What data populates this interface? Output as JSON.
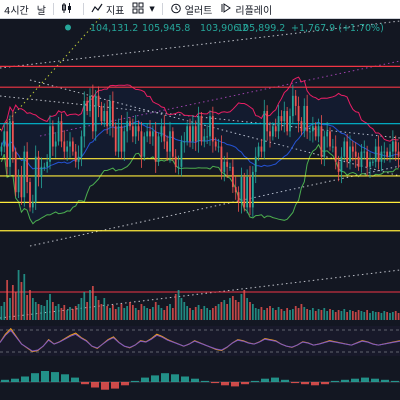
{
  "toolbar": {
    "interval_label": "4시간",
    "chart_type_label": "날",
    "indicators_label": "지표",
    "templates_label": "",
    "alert_label": "얼러트",
    "replay_label": "리플레이"
  },
  "colors": {
    "background": "#131722",
    "up": "#26a69a",
    "down": "#ef5350",
    "bb_upper": "#e91e63",
    "bb_lower": "#4caf50",
    "bb_basis": "#2962ff",
    "hline_red": "#f23645",
    "hline_yellow": "#ffeb3b",
    "hline_cyan": "#00bcd4",
    "trend_white": "#d1d4dc",
    "trend_yellow": "#cddc39",
    "trend_purple": "#ab47bc",
    "ohlc_text": "#26a69a"
  },
  "chart_data": [
    {
      "type": "candlestick",
      "title": "",
      "ohlc_header": {
        "open": "104,131.2",
        "high": "105,945.8",
        "low": "103,906.2",
        "close": "105,899.2",
        "change": "+1,767.9 (+1.70%)"
      },
      "ylim": [
        80,
        121
      ],
      "closes": [
        100,
        103,
        96,
        105,
        99,
        91,
        94,
        90,
        99,
        93,
        88,
        89,
        98,
        94,
        96,
        96,
        97,
        104,
        100,
        101,
        105,
        101,
        99,
        100,
        101,
        99,
        97,
        98,
        102,
        109,
        107,
        110,
        103,
        110,
        108,
        105,
        107,
        104,
        109,
        104,
        99,
        104,
        99,
        103,
        105,
        104,
        102,
        104,
        103,
        98,
        102,
        103,
        102,
        103,
        97,
        102,
        104,
        101,
        99,
        103,
        98,
        96,
        96,
        101,
        101,
        104,
        101,
        104,
        101,
        106,
        101,
        102,
        102,
        106,
        101,
        100,
        100,
        95,
        97,
        96,
        96,
        92,
        91,
        89,
        94,
        88,
        94,
        88,
        95,
        98,
        100,
        99,
        107,
        103,
        102,
        104,
        103,
        106,
        105,
        107,
        103,
        106,
        110,
        108,
        105,
        103,
        108,
        103,
        103,
        104,
        102,
        104,
        98,
        102,
        103,
        100,
        100,
        97,
        95,
        98,
        101,
        97,
        100,
        99,
        98,
        96,
        99,
        99,
        96,
        97,
        97,
        100,
        97,
        99,
        99,
        98,
        99,
        101,
        99,
        98
      ],
      "hlines": [
        {
          "value": 115.8,
          "color": "hline_red"
        },
        {
          "value": 111.7,
          "color": "hline_red"
        },
        {
          "value": 104.5,
          "color": "hline_cyan"
        },
        {
          "value": 97.6,
          "color": "hline_yellow"
        },
        {
          "value": 94.2,
          "color": "hline_yellow"
        },
        {
          "value": 89.0,
          "color": "hline_yellow"
        },
        {
          "value": 83.4,
          "color": "hline_yellow"
        }
      ]
    },
    {
      "type": "bar",
      "title": "",
      "volumes": [
        14,
        18,
        40,
        22,
        35,
        28,
        50,
        38,
        46,
        25,
        30,
        22,
        18,
        16,
        15,
        14,
        20,
        26,
        18,
        14,
        16,
        12,
        15,
        10,
        13,
        11,
        14,
        16,
        22,
        28,
        18,
        30,
        34,
        24,
        20,
        16,
        22,
        14,
        12,
        15,
        11,
        13,
        16,
        12,
        14,
        18,
        15,
        12,
        10,
        16,
        14,
        12,
        11,
        13,
        18,
        15,
        12,
        10,
        14,
        16,
        12,
        26,
        30,
        22,
        18,
        14,
        12,
        10,
        13,
        15,
        11,
        14,
        12,
        10,
        12,
        14,
        16,
        18,
        20,
        16,
        22,
        24,
        20,
        18,
        26,
        30,
        22,
        18,
        16,
        12,
        11,
        13,
        10,
        12,
        14,
        12,
        10,
        13,
        11,
        9,
        12,
        10,
        11,
        14,
        12,
        16,
        13,
        11,
        10,
        12,
        9,
        11,
        10,
        12,
        9,
        11,
        10,
        8,
        10,
        9,
        11,
        8,
        10,
        9,
        8,
        10,
        9,
        8,
        10,
        7,
        9,
        8,
        8,
        7,
        9,
        8,
        7,
        8,
        9,
        7
      ]
    },
    {
      "type": "line",
      "title": "",
      "series": [
        {
          "values": [
            55,
            70,
            80,
            66,
            52,
            45,
            38,
            40,
            48,
            60,
            52,
            56,
            62,
            68,
            72,
            64,
            58,
            48,
            44,
            52,
            60,
            65,
            55,
            48,
            45,
            50,
            58,
            56,
            62,
            70,
            66,
            60,
            56,
            52,
            48,
            52,
            58,
            54,
            50,
            46,
            42,
            40,
            46,
            54,
            60,
            58,
            54,
            52,
            56,
            62,
            60,
            58,
            52,
            48,
            46,
            50,
            56,
            54,
            50,
            52,
            55,
            58,
            56,
            54,
            52,
            50,
            54,
            58,
            56,
            52,
            50,
            52,
            54,
            56,
            58
          ]
        }
      ]
    },
    {
      "type": "bar",
      "title": "",
      "values": [
        2,
        3,
        5,
        8,
        10,
        9,
        7,
        4,
        -2,
        -5,
        -7,
        -6,
        -3,
        1,
        4,
        6,
        8,
        7,
        5,
        3,
        1,
        -1,
        -3,
        -4,
        -2,
        1,
        3,
        4,
        2,
        -1,
        -2,
        -3,
        -2,
        1,
        2,
        3,
        4,
        3,
        2,
        1
      ]
    }
  ]
}
